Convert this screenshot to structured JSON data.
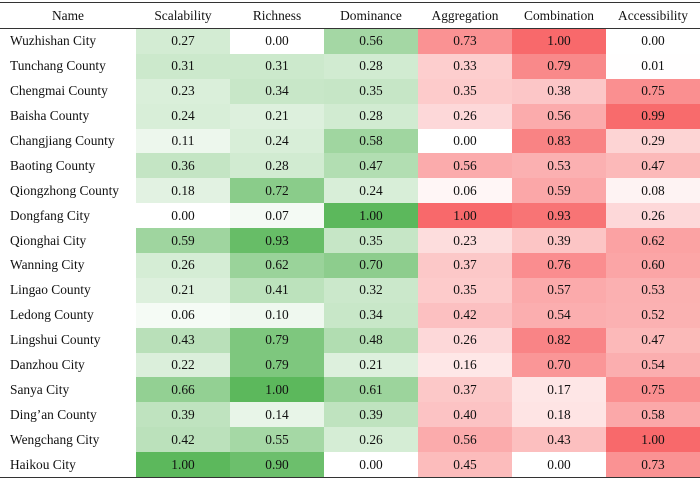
{
  "table": {
    "columns": [
      "Name",
      "Scalability",
      "Richness",
      "Dominance",
      "Aggregation",
      "Combination",
      "Accessibility"
    ],
    "color_scheme": {
      "green_columns": [
        "Scalability",
        "Richness",
        "Dominance"
      ],
      "red_columns": [
        "Aggregation",
        "Combination",
        "Accessibility"
      ],
      "green_max": "#5cb85c",
      "red_max": "#f8696b",
      "min": "#ffffff"
    },
    "rows": [
      {
        "name": "Wuzhishan City",
        "values": [
          "0.27",
          "0.00",
          "0.56",
          "0.73",
          "1.00",
          "0.00"
        ]
      },
      {
        "name": "Tunchang County",
        "values": [
          "0.31",
          "0.31",
          "0.28",
          "0.33",
          "0.79",
          "0.01"
        ]
      },
      {
        "name": "Chengmai County",
        "values": [
          "0.23",
          "0.34",
          "0.35",
          "0.35",
          "0.38",
          "0.75"
        ]
      },
      {
        "name": "Baisha County",
        "values": [
          "0.24",
          "0.21",
          "0.28",
          "0.26",
          "0.56",
          "0.99"
        ]
      },
      {
        "name": "Changjiang County",
        "values": [
          "0.11",
          "0.24",
          "0.58",
          "0.00",
          "0.83",
          "0.29"
        ]
      },
      {
        "name": "Baoting County",
        "values": [
          "0.36",
          "0.28",
          "0.47",
          "0.56",
          "0.53",
          "0.47"
        ]
      },
      {
        "name": "Qiongzhong County",
        "values": [
          "0.18",
          "0.72",
          "0.24",
          "0.06",
          "0.59",
          "0.08"
        ]
      },
      {
        "name": "Dongfang City",
        "values": [
          "0.00",
          "0.07",
          "1.00",
          "1.00",
          "0.93",
          "0.26"
        ]
      },
      {
        "name": "Qionghai City",
        "values": [
          "0.59",
          "0.93",
          "0.35",
          "0.23",
          "0.39",
          "0.62"
        ]
      },
      {
        "name": "Wanning City",
        "values": [
          "0.26",
          "0.62",
          "0.70",
          "0.37",
          "0.76",
          "0.60"
        ]
      },
      {
        "name": "Lingao County",
        "values": [
          "0.21",
          "0.41",
          "0.32",
          "0.35",
          "0.57",
          "0.53"
        ]
      },
      {
        "name": "Ledong County",
        "values": [
          "0.06",
          "0.10",
          "0.34",
          "0.42",
          "0.54",
          "0.52"
        ]
      },
      {
        "name": "Lingshui County",
        "values": [
          "0.43",
          "0.79",
          "0.48",
          "0.26",
          "0.82",
          "0.47"
        ]
      },
      {
        "name": "Danzhou City",
        "values": [
          "0.22",
          "0.79",
          "0.21",
          "0.16",
          "0.70",
          "0.54"
        ]
      },
      {
        "name": "Sanya City",
        "values": [
          "0.66",
          "1.00",
          "0.61",
          "0.37",
          "0.17",
          "0.75"
        ]
      },
      {
        "name": "Ding’an County",
        "values": [
          "0.39",
          "0.14",
          "0.39",
          "0.40",
          "0.18",
          "0.58"
        ]
      },
      {
        "name": "Wengchang City",
        "values": [
          "0.42",
          "0.55",
          "0.26",
          "0.56",
          "0.43",
          "1.00"
        ]
      },
      {
        "name": "Haikou City",
        "values": [
          "1.00",
          "0.90",
          "0.00",
          "0.45",
          "0.00",
          "0.73"
        ]
      }
    ]
  }
}
